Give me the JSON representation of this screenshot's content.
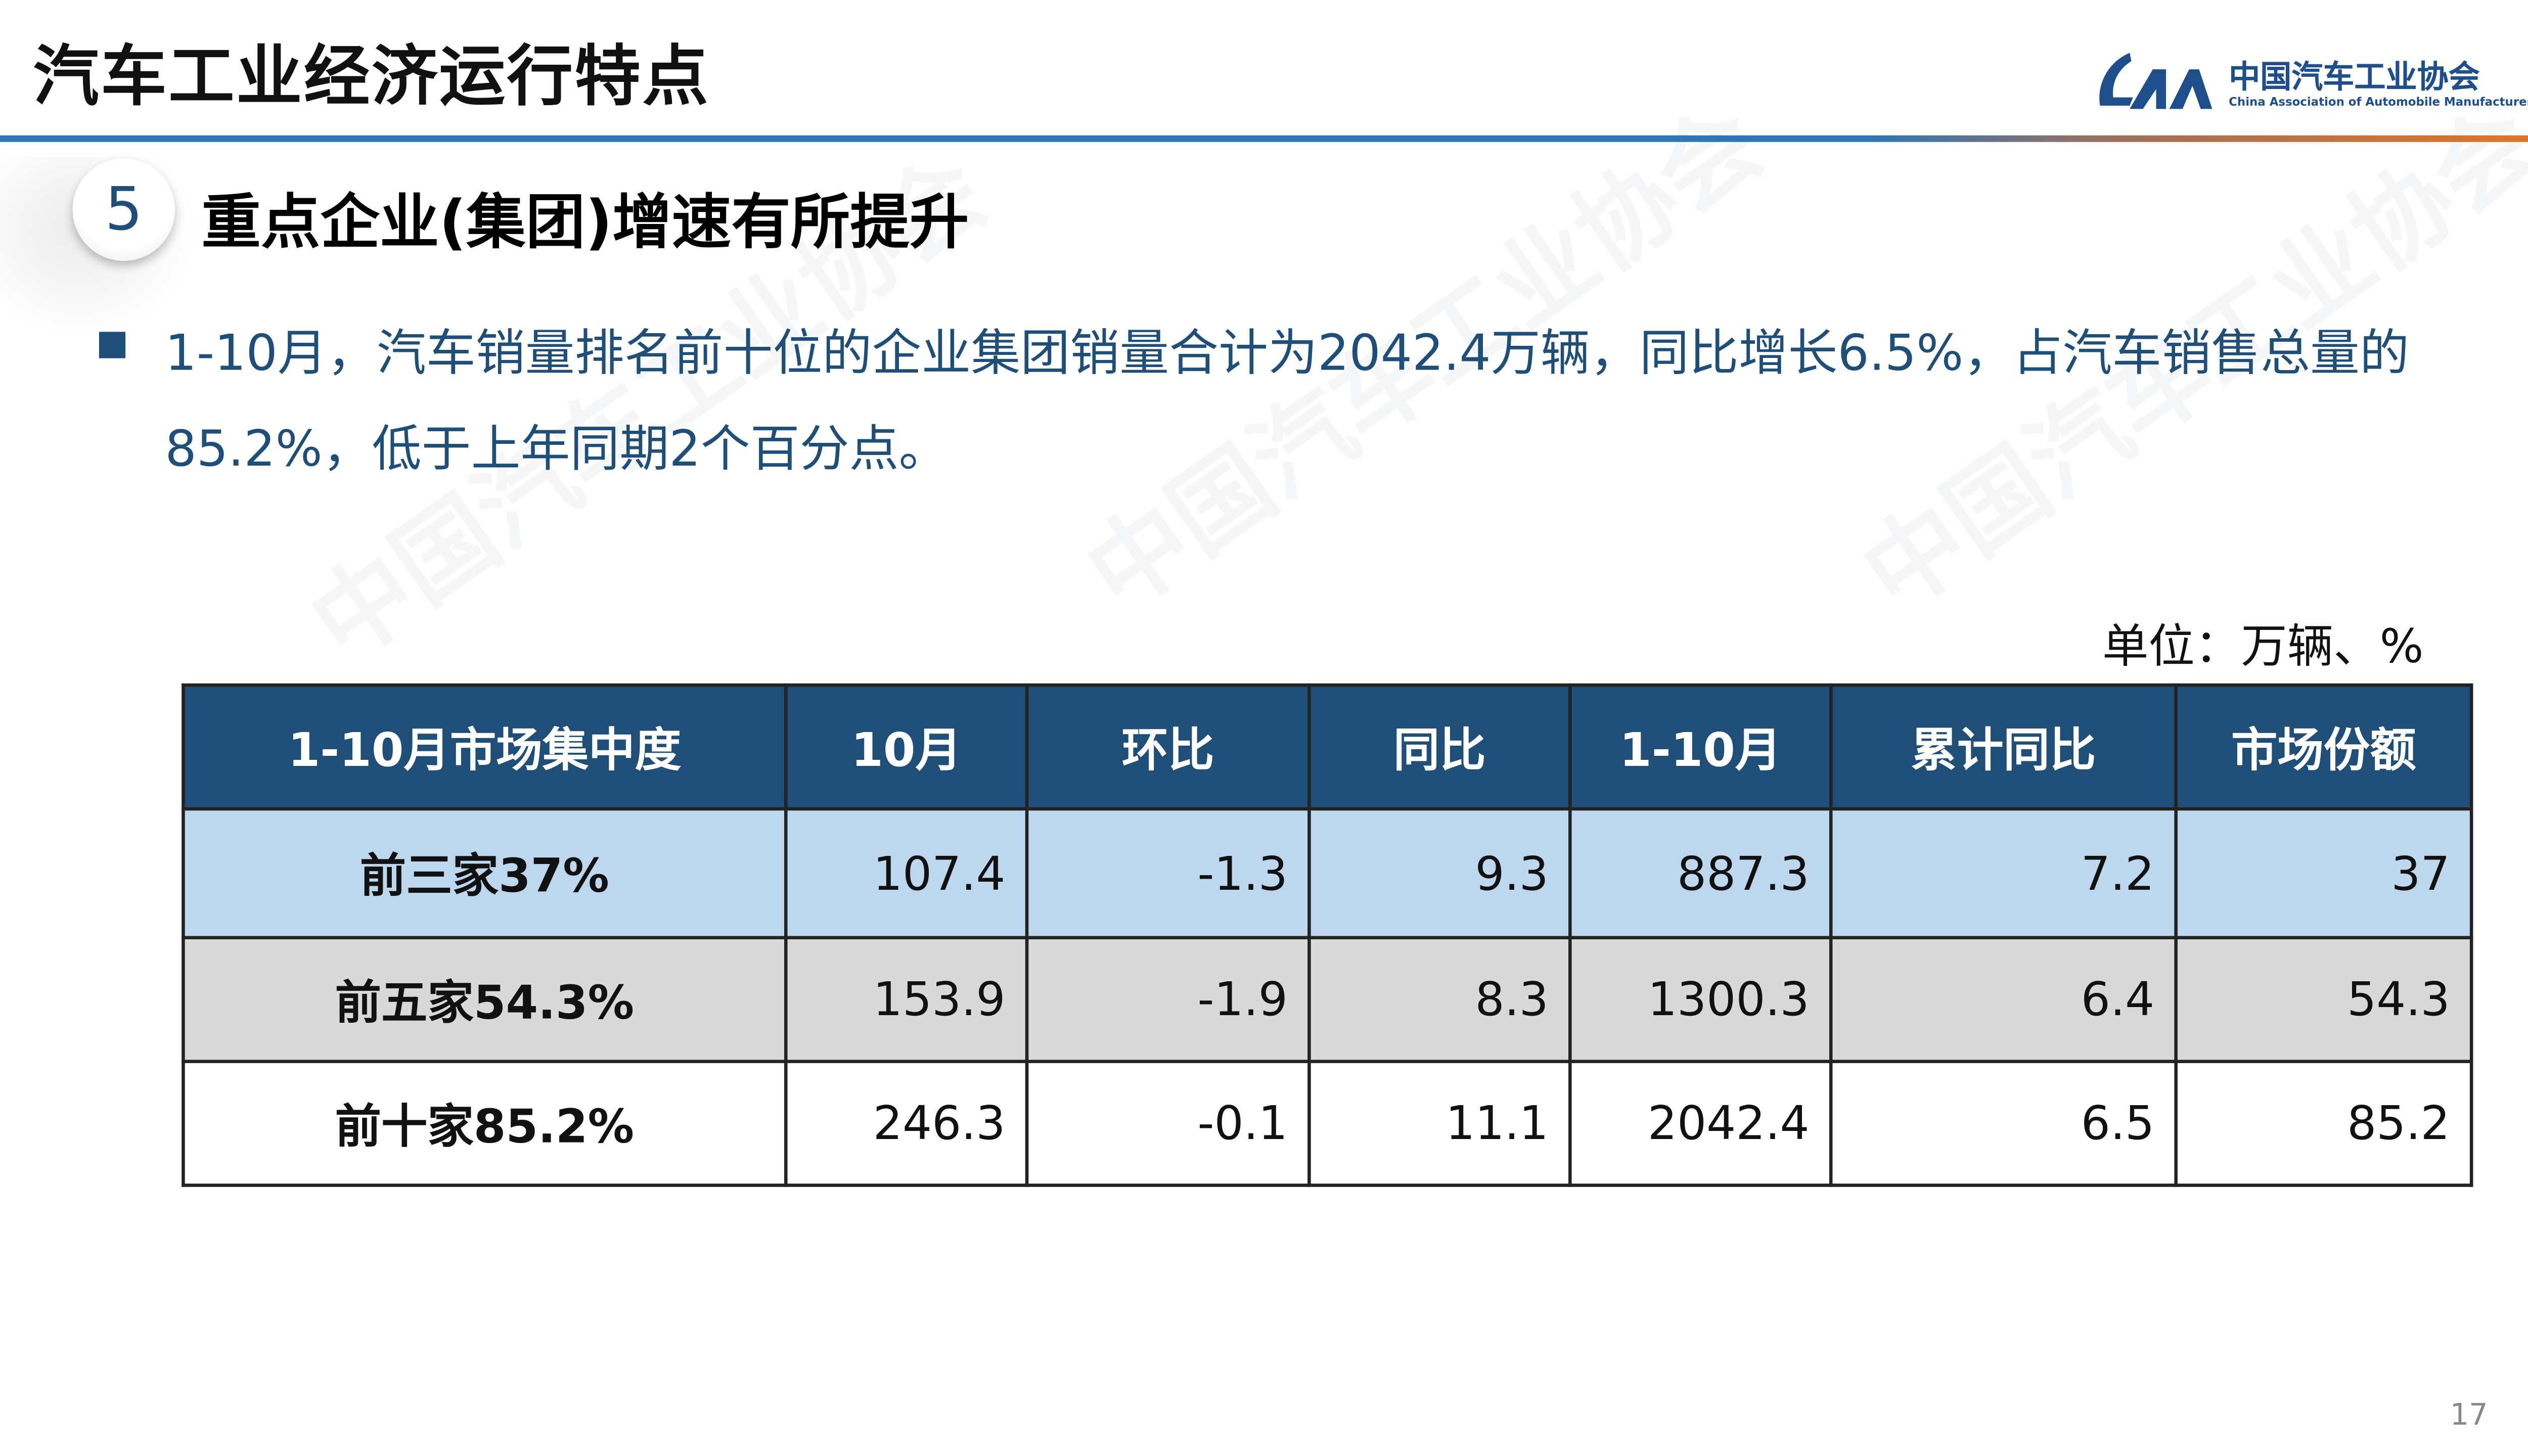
{
  "header": {
    "title": "汽车工业经济运行特点",
    "logo": {
      "cn": "中国汽车工业协会",
      "en": "China Association of Automobile Manufacturers",
      "mark": "CAM"
    }
  },
  "section": {
    "number": "5",
    "title": "重点企业(集团)增速有所提升"
  },
  "bullet": "1-10月，汽车销量排名前十位的企业集团销量合计为2042.4万辆，同比增长6.5%，占汽车销售总量的85.2%，低于上年同期2个百分点。",
  "unit_label": "单位：万辆、%",
  "table": {
    "headers": [
      "1-10月市场集中度",
      "10月",
      "环比",
      "同比",
      "1-10月",
      "累计同比",
      "市场份额"
    ],
    "rows": [
      [
        "前三家37%",
        "107.4",
        "-1.3",
        "9.3",
        "887.3",
        "7.2",
        "37"
      ],
      [
        "前五家54.3%",
        "153.9",
        "-1.9",
        "8.3",
        "1300.3",
        "6.4",
        "54.3"
      ],
      [
        "前十家85.2%",
        "246.3",
        "-0.1",
        "11.1",
        "2042.4",
        "6.5",
        "85.2"
      ]
    ]
  },
  "page_number": "17",
  "colors": {
    "header_blue": "#1f4e79",
    "row1": "#bdd7ee",
    "row2": "#d9d9d9",
    "accent_orange": "#e87722",
    "rule_blue": "#2e75b6"
  }
}
